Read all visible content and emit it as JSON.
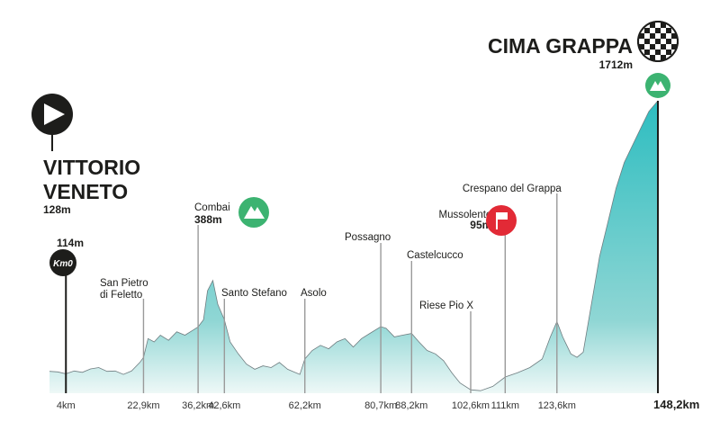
{
  "colors": {
    "profile_top": "#2dbdc0",
    "profile_bottom": "#e6f4f3",
    "profile_line": "#6f7d80",
    "marker_line": "#9a9a9a",
    "dark": "#1d1d1b",
    "climb_green": "#3cb371",
    "sprint_red": "#e22a36"
  },
  "start": {
    "name_line1": "VITTORIO",
    "name_line2": "VENETO",
    "elevation": "128m",
    "icon": "play-icon"
  },
  "finish": {
    "name": "CIMA GRAPPA",
    "elevation": "1712m",
    "icon": "checkered-flag-icon",
    "climb_icon": "mountain-icon"
  },
  "km0": {
    "badge": "Km0",
    "elevation": "114m"
  },
  "chart_data": {
    "type": "area",
    "xlim": [
      0,
      148.2
    ],
    "ylim": [
      0,
      1712
    ],
    "x_unit": "km",
    "profile": [
      [
        0,
        128
      ],
      [
        2,
        125
      ],
      [
        4,
        114
      ],
      [
        6,
        130
      ],
      [
        8,
        122
      ],
      [
        10,
        142
      ],
      [
        12,
        150
      ],
      [
        14,
        128
      ],
      [
        16,
        130
      ],
      [
        18,
        110
      ],
      [
        20,
        130
      ],
      [
        22,
        180
      ],
      [
        22.9,
        210
      ],
      [
        24,
        320
      ],
      [
        25.5,
        300
      ],
      [
        27,
        340
      ],
      [
        29,
        310
      ],
      [
        31,
        360
      ],
      [
        33,
        340
      ],
      [
        35,
        370
      ],
      [
        36.2,
        388
      ],
      [
        37.5,
        430
      ],
      [
        38.5,
        600
      ],
      [
        39.8,
        660
      ],
      [
        41,
        520
      ],
      [
        42.6,
        430
      ],
      [
        44,
        300
      ],
      [
        46,
        230
      ],
      [
        48,
        170
      ],
      [
        50,
        140
      ],
      [
        52,
        160
      ],
      [
        54,
        150
      ],
      [
        56,
        180
      ],
      [
        58,
        140
      ],
      [
        60,
        120
      ],
      [
        61,
        110
      ],
      [
        62.2,
        200
      ],
      [
        64,
        250
      ],
      [
        66,
        280
      ],
      [
        68,
        260
      ],
      [
        70,
        300
      ],
      [
        72,
        320
      ],
      [
        74,
        270
      ],
      [
        76,
        320
      ],
      [
        78,
        350
      ],
      [
        80.7,
        390
      ],
      [
        82,
        380
      ],
      [
        84,
        330
      ],
      [
        86,
        340
      ],
      [
        88.2,
        350
      ],
      [
        90,
        300
      ],
      [
        92,
        250
      ],
      [
        94,
        230
      ],
      [
        96,
        190
      ],
      [
        98,
        120
      ],
      [
        100,
        60
      ],
      [
        102.6,
        20
      ],
      [
        105,
        15
      ],
      [
        108,
        40
      ],
      [
        111,
        95
      ],
      [
        114,
        120
      ],
      [
        117,
        150
      ],
      [
        120,
        200
      ],
      [
        122,
        330
      ],
      [
        123.6,
        420
      ],
      [
        125,
        330
      ],
      [
        127,
        230
      ],
      [
        128.5,
        210
      ],
      [
        130,
        240
      ],
      [
        132,
        520
      ],
      [
        134,
        800
      ],
      [
        136,
        1000
      ],
      [
        138,
        1200
      ],
      [
        140,
        1350
      ],
      [
        142,
        1450
      ],
      [
        144,
        1550
      ],
      [
        146,
        1650
      ],
      [
        148.2,
        1712
      ]
    ],
    "markers": [
      {
        "km": 4,
        "km_label": "4km",
        "name": "",
        "elevation": "",
        "badge": "km0"
      },
      {
        "km": 22.9,
        "km_label": "22,9km",
        "name_lines": [
          "San Pietro",
          "di Feletto"
        ],
        "elevation": ""
      },
      {
        "km": 36.2,
        "km_label": "36,2km",
        "name_lines": [
          "Combai"
        ],
        "elevation": "388m",
        "icon": "mountain-icon"
      },
      {
        "km": 42.6,
        "km_label": "42,6km",
        "name_lines": [
          "Santo Stefano"
        ],
        "elevation": ""
      },
      {
        "km": 62.2,
        "km_label": "62,2km",
        "name_lines": [
          "Asolo"
        ],
        "elevation": ""
      },
      {
        "km": 80.7,
        "km_label": "80,7km",
        "name_lines": [
          "Possagno"
        ],
        "elevation": ""
      },
      {
        "km": 88.2,
        "km_label": "88,2km",
        "name_lines": [
          "Castelcucco"
        ],
        "elevation": ""
      },
      {
        "km": 102.6,
        "km_label": "102,6km",
        "name_lines": [
          "Riese Pio X"
        ],
        "elevation": ""
      },
      {
        "km": 111,
        "km_label": "111km",
        "name_lines": [
          "Mussolente"
        ],
        "elevation": "95m",
        "icon": "sprint-flag-icon"
      },
      {
        "km": 123.6,
        "km_label": "123,6km",
        "name_lines": [
          "Crespano del Grappa"
        ],
        "elevation": ""
      },
      {
        "km": 148.2,
        "km_label": "148,2km",
        "name_lines": [],
        "elevation": "",
        "final": true
      }
    ]
  }
}
